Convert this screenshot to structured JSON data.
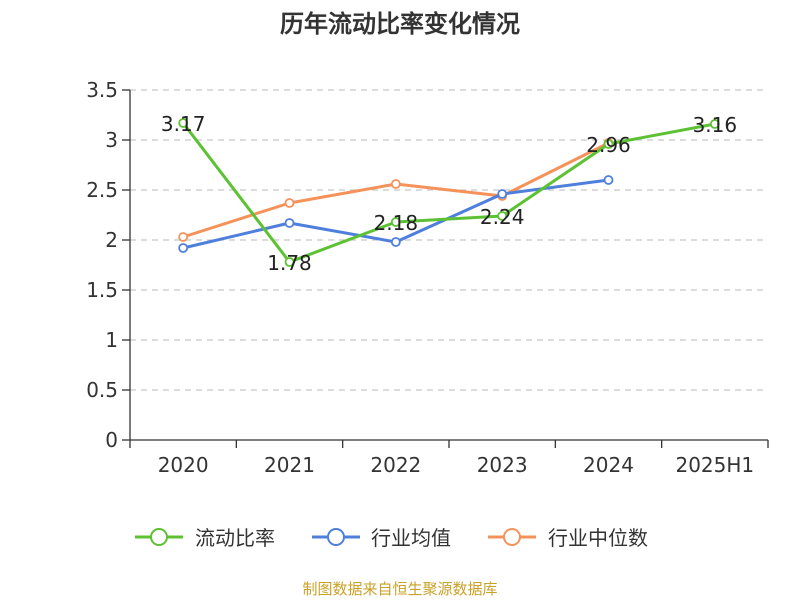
{
  "chart_data": {
    "type": "line",
    "title": "历年流动比率变化情况",
    "categories": [
      "2020",
      "2021",
      "2022",
      "2023",
      "2024",
      "2025H1"
    ],
    "ylim": [
      0,
      3.5
    ],
    "yticks": [
      "0",
      "0.5",
      "1",
      "1.5",
      "2",
      "2.5",
      "3",
      "3.5"
    ],
    "grid": true,
    "legend_position": "bottom",
    "series": [
      {
        "name": "流动比率",
        "color": "#5cc233",
        "values": [
          3.17,
          1.78,
          2.18,
          2.24,
          2.96,
          3.16
        ],
        "labels": [
          "3.17",
          "1.78",
          "2.18",
          "2.24",
          "2.96",
          "3.16"
        ]
      },
      {
        "name": "行业均值",
        "color": "#4e7fdc",
        "values": [
          1.92,
          2.17,
          1.98,
          2.46,
          2.6,
          null
        ]
      },
      {
        "name": "行业中位数",
        "color": "#f5925a",
        "values": [
          2.03,
          2.37,
          2.56,
          2.44,
          2.97,
          null
        ]
      }
    ]
  },
  "source": "制图数据来自恒生聚源数据库"
}
